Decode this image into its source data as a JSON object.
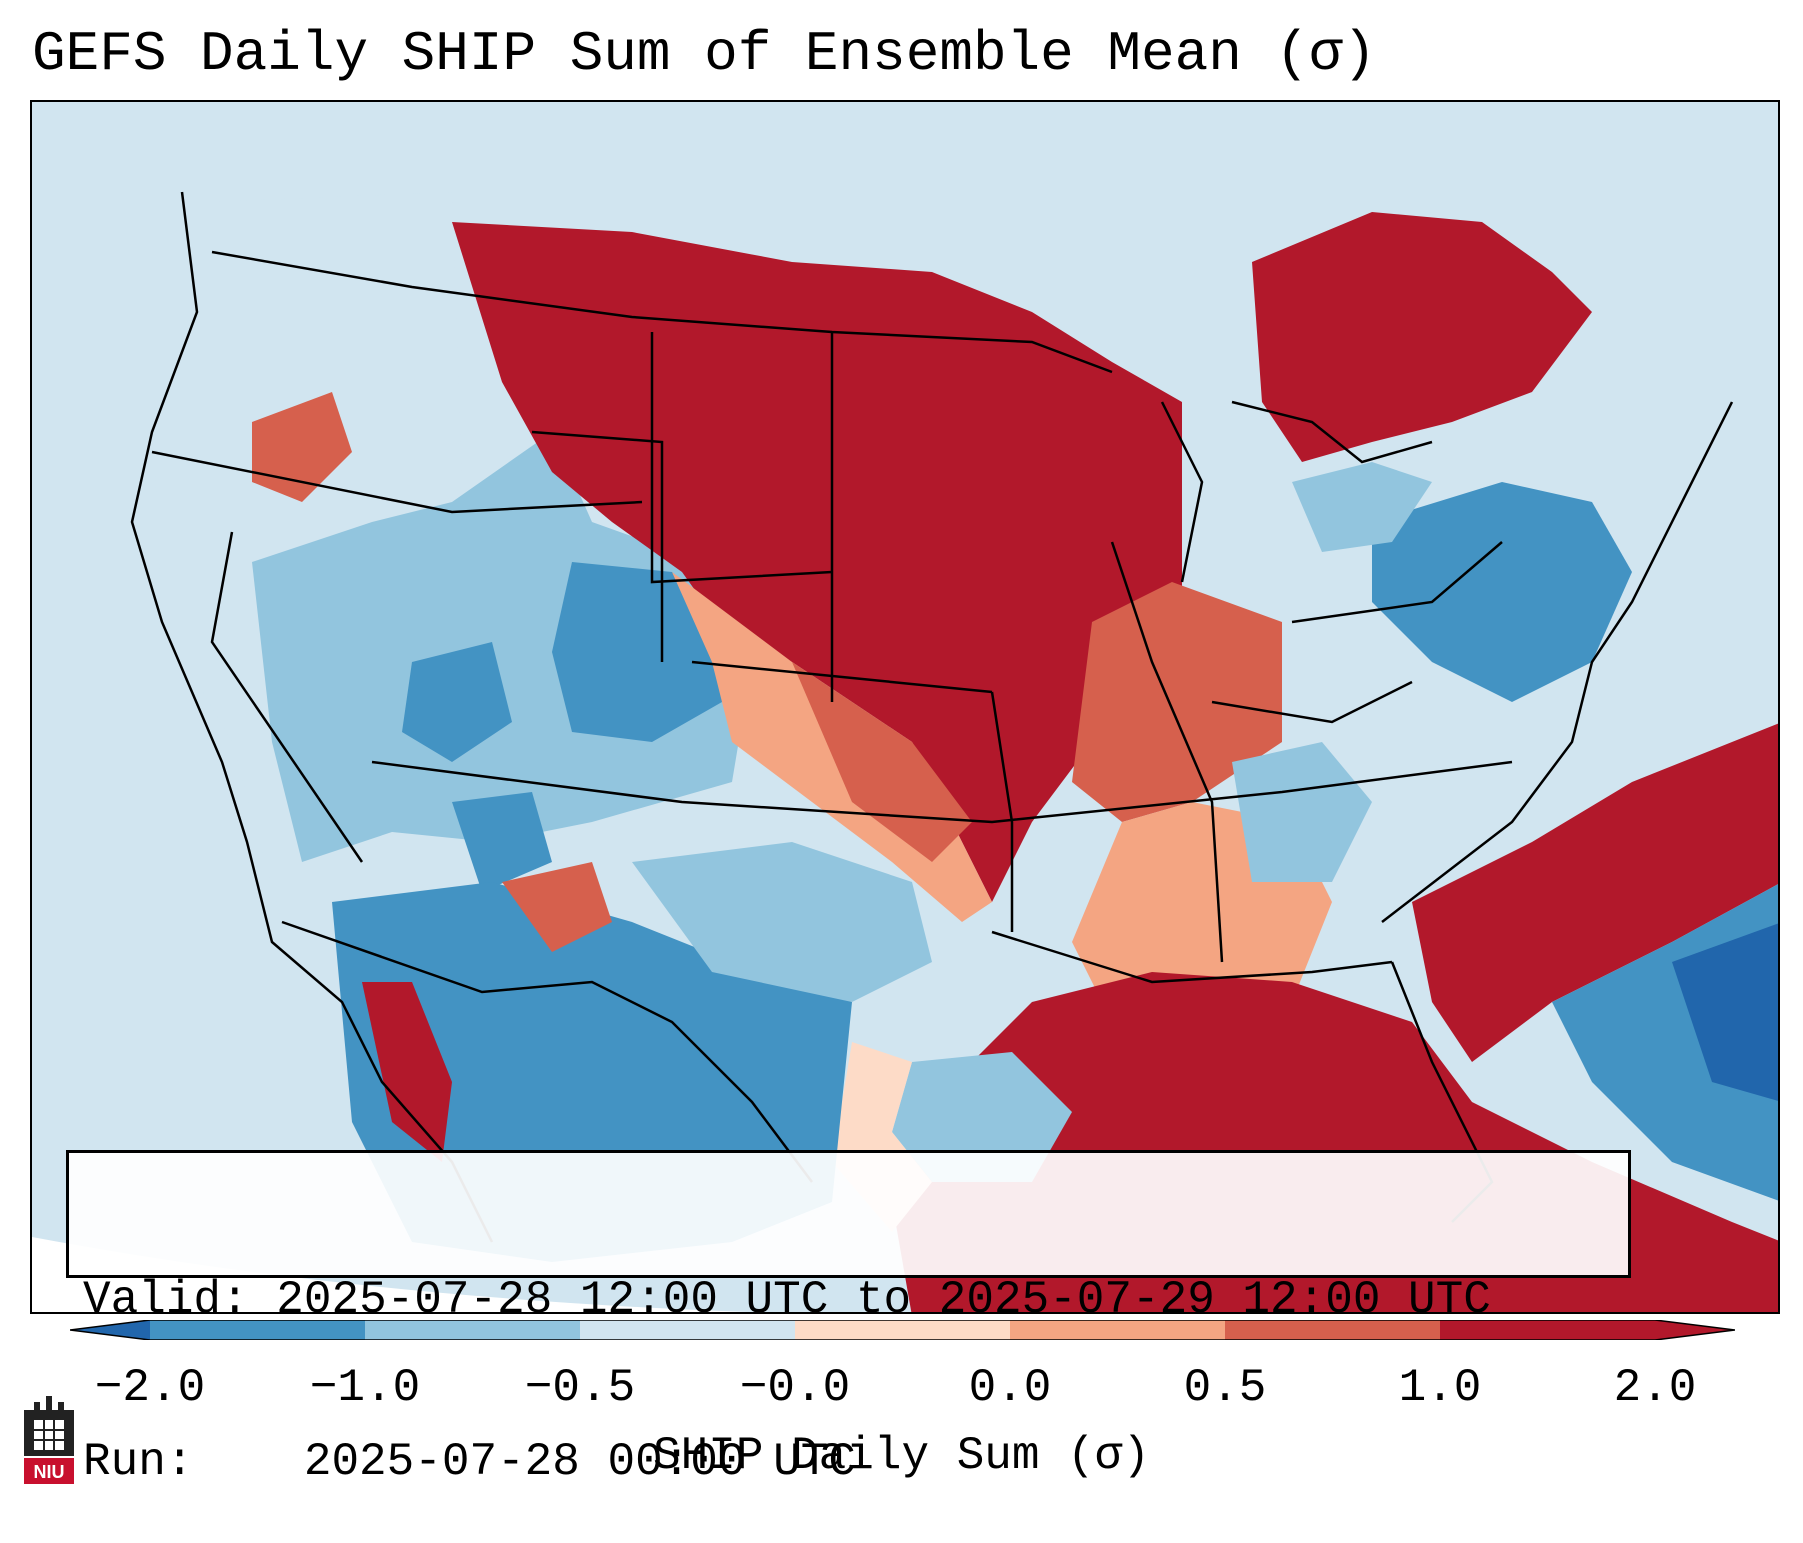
{
  "title": "GEFS Daily SHIP Sum of Ensemble Mean (σ)",
  "info": {
    "valid_label": "Valid:",
    "valid_value": "2025-07-28 12:00 UTC to 2025-07-29 12:00 UTC",
    "run_label": "Run:",
    "run_value": "2025-07-28 00:00 UTC"
  },
  "colorbar": {
    "label": "SHIP Daily Sum (σ)",
    "ticks": [
      "−2.0",
      "−1.0",
      "−0.5",
      "−0.0",
      "0.0",
      "0.5",
      "1.0",
      "2.0"
    ],
    "colors": [
      "#2166ac",
      "#4393c3",
      "#92c5de",
      "#d1e5f0",
      "#fddbc7",
      "#f4a582",
      "#d6604d",
      "#b2182b"
    ],
    "extend_low_color": "#2166ac",
    "extend_high_color": "#b2182b"
  },
  "logo": {
    "text": "NIU",
    "icon": "niu-castle-logo-icon"
  }
}
